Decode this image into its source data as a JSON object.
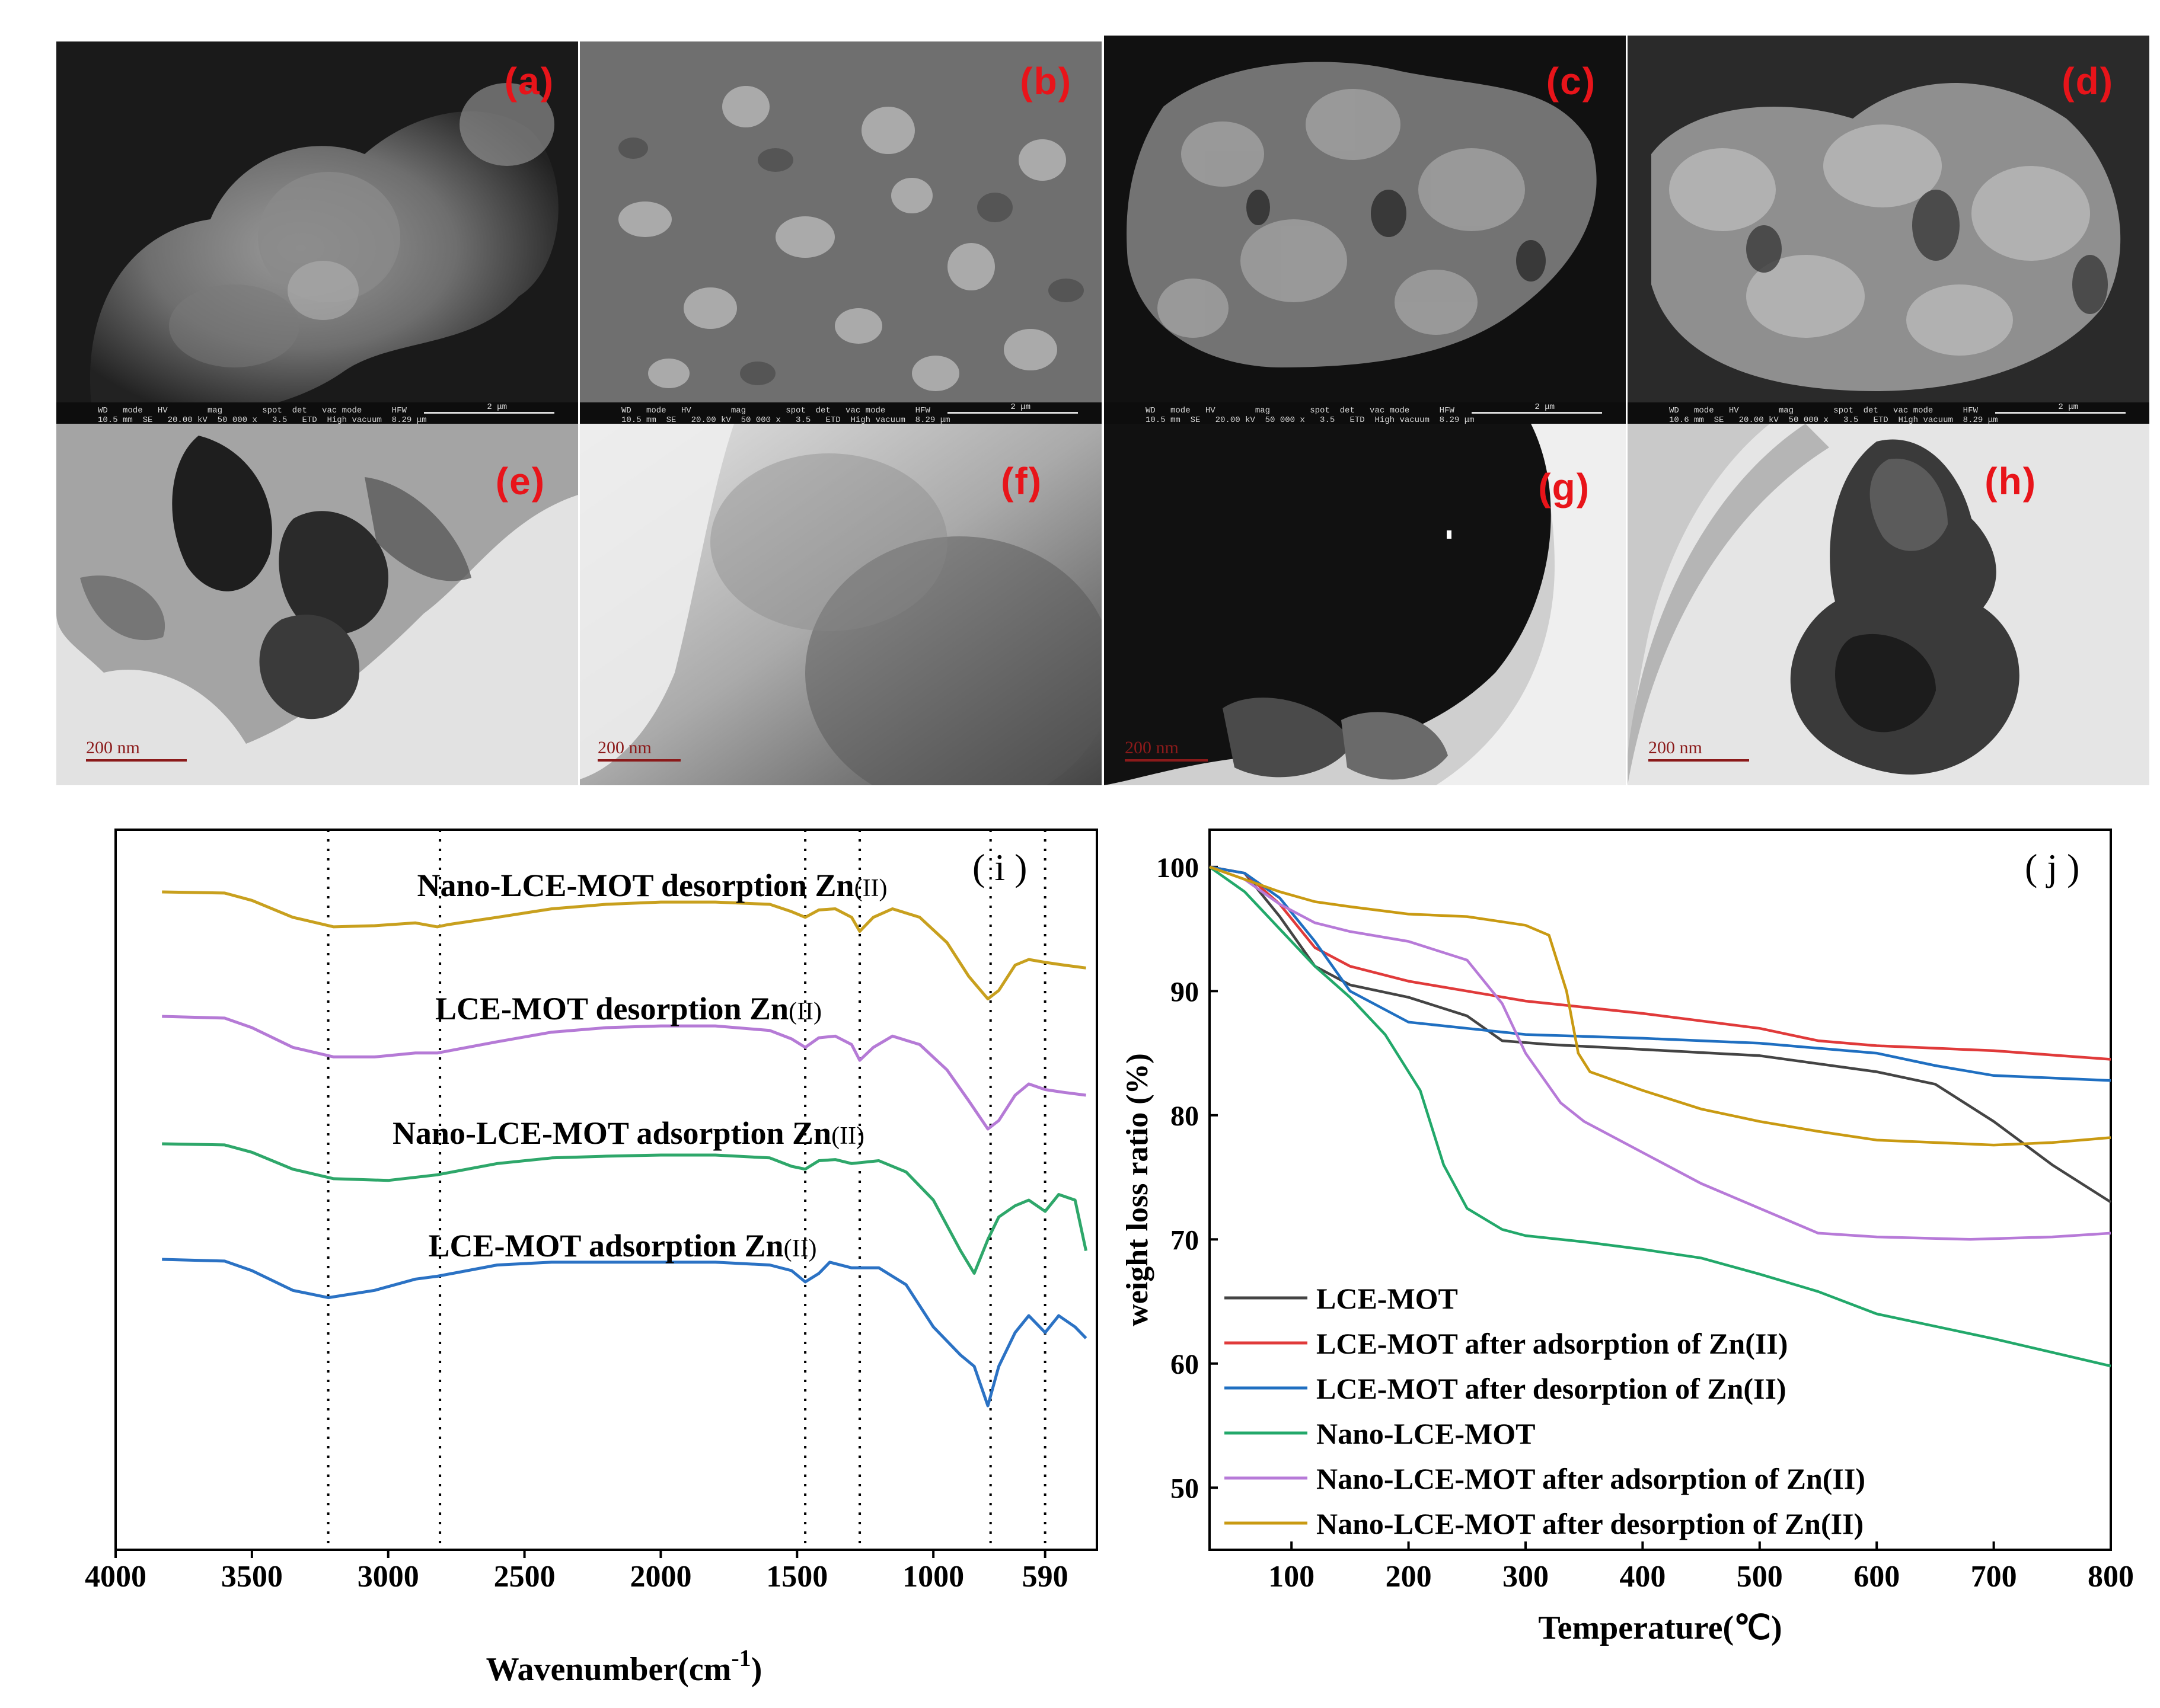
{
  "panels": [
    {
      "id": "a",
      "label": "(a)",
      "kind": "sem",
      "scale": "2 μm",
      "meta": "WD   mode   HV        mag        spot  det   vac mode      HFW\n10.5 mm  SE   20.00 kV  50 000 x   3.5   ETD  High vacuum  8.29 μm"
    },
    {
      "id": "b",
      "label": "(b)",
      "kind": "sem",
      "scale": "2 μm",
      "meta": "WD   mode   HV        mag        spot  det   vac mode      HFW\n10.5 mm  SE   20.00 kV  50 000 x   3.5   ETD  High vacuum  8.29 μm"
    },
    {
      "id": "c",
      "label": "(c)",
      "kind": "sem",
      "scale": "2 μm",
      "meta": "WD   mode   HV        mag        spot  det   vac mode      HFW\n10.5 mm  SE   20.00 kV  50 000 x   3.5   ETD  High vacuum  8.29 μm"
    },
    {
      "id": "d",
      "label": "(d)",
      "kind": "sem",
      "scale": "2 μm",
      "meta": "WD   mode   HV        mag        spot  det   vac mode      HFW\n10.6 mm  SE   20.00 kV  50 000 x   3.5   ETD  High vacuum  8.29 μm"
    },
    {
      "id": "e",
      "label": "(e)",
      "kind": "tem",
      "scale": "200 nm"
    },
    {
      "id": "f",
      "label": "(f)",
      "kind": "tem",
      "scale": "200 nm"
    },
    {
      "id": "g",
      "label": "(g)",
      "kind": "tem",
      "scale": "200 nm"
    },
    {
      "id": "h",
      "label": "(h)",
      "kind": "tem",
      "scale": "200 nm"
    }
  ],
  "chart_data": [
    {
      "type": "line",
      "panel_label": "( i )",
      "xlabel": "Wavenumber(cm",
      "xlabel_sup": "-1",
      "xlabel_end": ")",
      "ylabel": "",
      "xlim": [
        4000,
        400
      ],
      "x_ticks": [
        4000,
        3500,
        3000,
        2500,
        2000,
        1500,
        1000,
        590
      ],
      "x_tick_labels": [
        "4000",
        "3500",
        "3000",
        "2500",
        "2000",
        "1500",
        "1000",
        "590"
      ],
      "reference_lines_cm1": [
        3220,
        2810,
        1470,
        1270,
        790,
        590
      ],
      "series": [
        {
          "name": "Nano-LCE-MOT desorption Zn(II)",
          "color": "#c8a01e",
          "points": [
            [
              3830,
              0.0
            ],
            [
              3600,
              0.02
            ],
            [
              3500,
              0.15
            ],
            [
              3350,
              0.45
            ],
            [
              3200,
              0.62
            ],
            [
              3050,
              0.6
            ],
            [
              2900,
              0.55
            ],
            [
              2820,
              0.62
            ],
            [
              2780,
              0.58
            ],
            [
              2600,
              0.45
            ],
            [
              2400,
              0.3
            ],
            [
              2200,
              0.22
            ],
            [
              2000,
              0.18
            ],
            [
              1800,
              0.18
            ],
            [
              1600,
              0.22
            ],
            [
              1520,
              0.35
            ],
            [
              1470,
              0.45
            ],
            [
              1420,
              0.32
            ],
            [
              1360,
              0.3
            ],
            [
              1300,
              0.45
            ],
            [
              1270,
              0.7
            ],
            [
              1220,
              0.45
            ],
            [
              1150,
              0.3
            ],
            [
              1050,
              0.45
            ],
            [
              950,
              0.9
            ],
            [
              870,
              1.5
            ],
            [
              800,
              1.9
            ],
            [
              760,
              1.75
            ],
            [
              700,
              1.3
            ],
            [
              650,
              1.2
            ],
            [
              590,
              1.25
            ],
            [
              520,
              1.3
            ],
            [
              440,
              1.35
            ]
          ]
        },
        {
          "name": "LCE-MOT desorption Zn(II)",
          "color": "#b57ad6",
          "points": [
            [
              3830,
              0.0
            ],
            [
              3600,
              0.03
            ],
            [
              3500,
              0.2
            ],
            [
              3350,
              0.55
            ],
            [
              3200,
              0.72
            ],
            [
              3050,
              0.72
            ],
            [
              2900,
              0.65
            ],
            [
              2820,
              0.65
            ],
            [
              2600,
              0.45
            ],
            [
              2400,
              0.28
            ],
            [
              2200,
              0.2
            ],
            [
              2000,
              0.17
            ],
            [
              1800,
              0.17
            ],
            [
              1600,
              0.25
            ],
            [
              1520,
              0.4
            ],
            [
              1470,
              0.55
            ],
            [
              1420,
              0.38
            ],
            [
              1360,
              0.35
            ],
            [
              1300,
              0.5
            ],
            [
              1270,
              0.78
            ],
            [
              1220,
              0.55
            ],
            [
              1150,
              0.35
            ],
            [
              1050,
              0.5
            ],
            [
              950,
              0.95
            ],
            [
              870,
              1.5
            ],
            [
              800,
              2.0
            ],
            [
              760,
              1.85
            ],
            [
              700,
              1.4
            ],
            [
              650,
              1.2
            ],
            [
              590,
              1.3
            ],
            [
              520,
              1.35
            ],
            [
              440,
              1.4
            ]
          ]
        },
        {
          "name": "Nano-LCE-MOT adsorption Zn(II)",
          "color": "#2ea76a",
          "points": [
            [
              3830,
              0.0
            ],
            [
              3600,
              0.02
            ],
            [
              3500,
              0.15
            ],
            [
              3350,
              0.45
            ],
            [
              3200,
              0.62
            ],
            [
              3000,
              0.65
            ],
            [
              2820,
              0.55
            ],
            [
              2600,
              0.35
            ],
            [
              2400,
              0.25
            ],
            [
              2200,
              0.22
            ],
            [
              2000,
              0.2
            ],
            [
              1800,
              0.2
            ],
            [
              1600,
              0.25
            ],
            [
              1520,
              0.4
            ],
            [
              1470,
              0.45
            ],
            [
              1420,
              0.3
            ],
            [
              1360,
              0.28
            ],
            [
              1300,
              0.35
            ],
            [
              1200,
              0.3
            ],
            [
              1100,
              0.5
            ],
            [
              1000,
              1.0
            ],
            [
              900,
              1.9
            ],
            [
              850,
              2.3
            ],
            [
              800,
              1.7
            ],
            [
              760,
              1.3
            ],
            [
              700,
              1.1
            ],
            [
              650,
              1.0
            ],
            [
              590,
              1.2
            ],
            [
              540,
              0.9
            ],
            [
              480,
              1.0
            ],
            [
              440,
              1.9
            ]
          ]
        },
        {
          "name": "LCE-MOT adsorption Zn(II)",
          "color": "#2b72c4",
          "points": [
            [
              3830,
              0.0
            ],
            [
              3600,
              0.03
            ],
            [
              3500,
              0.2
            ],
            [
              3350,
              0.55
            ],
            [
              3220,
              0.68
            ],
            [
              3050,
              0.55
            ],
            [
              2900,
              0.35
            ],
            [
              2820,
              0.3
            ],
            [
              2600,
              0.1
            ],
            [
              2400,
              0.05
            ],
            [
              2200,
              0.05
            ],
            [
              2000,
              0.05
            ],
            [
              1800,
              0.05
            ],
            [
              1600,
              0.1
            ],
            [
              1520,
              0.2
            ],
            [
              1470,
              0.4
            ],
            [
              1420,
              0.25
            ],
            [
              1380,
              0.05
            ],
            [
              1300,
              0.15
            ],
            [
              1200,
              0.15
            ],
            [
              1100,
              0.45
            ],
            [
              1000,
              1.2
            ],
            [
              900,
              1.7
            ],
            [
              850,
              1.9
            ],
            [
              800,
              2.6
            ],
            [
              760,
              1.9
            ],
            [
              700,
              1.3
            ],
            [
              650,
              1.0
            ],
            [
              590,
              1.3
            ],
            [
              540,
              1.0
            ],
            [
              480,
              1.2
            ],
            [
              440,
              1.4
            ]
          ]
        }
      ],
      "series_offsets": [
        0,
        1,
        2,
        3
      ],
      "labels": [
        "Nano-LCE-MOT desorption Zn",
        "LCE-MOT desorption Zn",
        "Nano-LCE-MOT adsorption Zn",
        "LCE-MOT adsorption Zn"
      ],
      "label_suffix": "(II)"
    },
    {
      "type": "line",
      "panel_label": "( j )",
      "xlabel": "Temperature(℃)",
      "ylabel": "weight loss ratio (%)",
      "xlim": [
        30,
        800
      ],
      "ylim": [
        45,
        103
      ],
      "x_ticks": [
        100,
        200,
        300,
        400,
        500,
        600,
        700,
        800
      ],
      "y_ticks": [
        50,
        60,
        70,
        80,
        90,
        100
      ],
      "series": [
        {
          "name": "LCE-MOT",
          "color": "#444444",
          "points": [
            [
              30,
              100
            ],
            [
              60,
              99.5
            ],
            [
              90,
              96
            ],
            [
              120,
              92
            ],
            [
              150,
              90.5
            ],
            [
              200,
              89.5
            ],
            [
              250,
              88
            ],
            [
              280,
              86
            ],
            [
              320,
              85.7
            ],
            [
              400,
              85.3
            ],
            [
              500,
              84.8
            ],
            [
              600,
              83.5
            ],
            [
              650,
              82.5
            ],
            [
              700,
              79.5
            ],
            [
              750,
              76
            ],
            [
              800,
              73
            ]
          ]
        },
        {
          "name": "LCE-MOT after adsorption of Zn(II)",
          "color": "#e03a3a",
          "points": [
            [
              30,
              100
            ],
            [
              60,
              99.5
            ],
            [
              90,
              97
            ],
            [
              120,
              93.5
            ],
            [
              150,
              92
            ],
            [
              200,
              90.8
            ],
            [
              250,
              90
            ],
            [
              300,
              89.2
            ],
            [
              400,
              88.2
            ],
            [
              500,
              87
            ],
            [
              550,
              86
            ],
            [
              600,
              85.6
            ],
            [
              700,
              85.2
            ],
            [
              800,
              84.5
            ]
          ]
        },
        {
          "name": "LCE-MOT after desorption of Zn(II)",
          "color": "#1f6fc1",
          "points": [
            [
              30,
              100
            ],
            [
              60,
              99.5
            ],
            [
              90,
              97.5
            ],
            [
              120,
              94
            ],
            [
              150,
              90
            ],
            [
              200,
              87.5
            ],
            [
              250,
              87
            ],
            [
              300,
              86.5
            ],
            [
              400,
              86.2
            ],
            [
              500,
              85.8
            ],
            [
              600,
              85
            ],
            [
              650,
              84
            ],
            [
              700,
              83.2
            ],
            [
              800,
              82.8
            ]
          ]
        },
        {
          "name": "Nano-LCE-MOT",
          "color": "#22a86a",
          "points": [
            [
              30,
              100
            ],
            [
              60,
              98
            ],
            [
              90,
              95
            ],
            [
              120,
              92
            ],
            [
              150,
              89.5
            ],
            [
              180,
              86.5
            ],
            [
              210,
              82
            ],
            [
              230,
              76
            ],
            [
              250,
              72.5
            ],
            [
              280,
              70.8
            ],
            [
              300,
              70.3
            ],
            [
              350,
              69.8
            ],
            [
              400,
              69.2
            ],
            [
              450,
              68.5
            ],
            [
              500,
              67.2
            ],
            [
              550,
              65.8
            ],
            [
              600,
              64
            ],
            [
              700,
              62
            ],
            [
              800,
              59.8
            ]
          ]
        },
        {
          "name": "Nano-LCE-MOT after adsorption of Zn(II)",
          "color": "#b77ad8",
          "points": [
            [
              30,
              100
            ],
            [
              60,
              99
            ],
            [
              90,
              97
            ],
            [
              120,
              95.5
            ],
            [
              150,
              94.8
            ],
            [
              200,
              94
            ],
            [
              250,
              92.5
            ],
            [
              280,
              89
            ],
            [
              300,
              85
            ],
            [
              330,
              81
            ],
            [
              350,
              79.5
            ],
            [
              400,
              77
            ],
            [
              450,
              74.5
            ],
            [
              500,
              72.5
            ],
            [
              550,
              70.5
            ],
            [
              600,
              70.2
            ],
            [
              680,
              70
            ],
            [
              750,
              70.2
            ],
            [
              800,
              70.5
            ]
          ]
        },
        {
          "name": "Nano-LCE-MOT after desorption of Zn(II)",
          "color": "#c99a12",
          "points": [
            [
              30,
              100
            ],
            [
              60,
              99
            ],
            [
              90,
              98
            ],
            [
              120,
              97.2
            ],
            [
              150,
              96.8
            ],
            [
              200,
              96.2
            ],
            [
              250,
              96
            ],
            [
              300,
              95.3
            ],
            [
              320,
              94.5
            ],
            [
              335,
              90
            ],
            [
              345,
              85
            ],
            [
              355,
              83.5
            ],
            [
              400,
              82
            ],
            [
              450,
              80.5
            ],
            [
              500,
              79.5
            ],
            [
              550,
              78.7
            ],
            [
              600,
              78
            ],
            [
              650,
              77.8
            ],
            [
              700,
              77.6
            ],
            [
              750,
              77.8
            ],
            [
              800,
              78.2
            ]
          ]
        }
      ],
      "legend": [
        "LCE-MOT",
        "LCE-MOT after adsorption of Zn(II)",
        "LCE-MOT after desorption of Zn(II)",
        "Nano-LCE-MOT",
        "Nano-LCE-MOT after adsorption of Zn(II)",
        "Nano-LCE-MOT after desorption of Zn(II)"
      ],
      "legend_position": "bottom-left"
    }
  ]
}
